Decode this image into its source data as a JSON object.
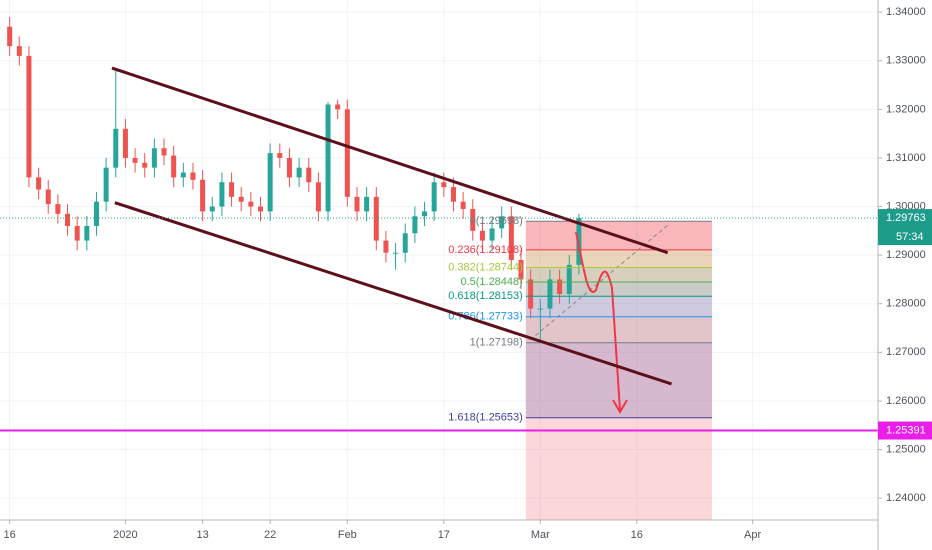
{
  "chart_data": {
    "type": "candlestick",
    "x": [
      0,
      1,
      2,
      3,
      4,
      5,
      6,
      7,
      8,
      9,
      10,
      11,
      12,
      13,
      14,
      15,
      16,
      17,
      18,
      19,
      20,
      21,
      22,
      23,
      24,
      25,
      26,
      27,
      28,
      29,
      30,
      31,
      32,
      33,
      34,
      35,
      36,
      37,
      38,
      39,
      40,
      41,
      42,
      43,
      44,
      45,
      46,
      47,
      48,
      49,
      50,
      51,
      52,
      53,
      54,
      55,
      56,
      57,
      58,
      59
    ],
    "open": [
      1.337,
      1.333,
      1.331,
      1.306,
      1.3035,
      1.3005,
      1.2985,
      1.296,
      1.293,
      1.296,
      1.301,
      1.308,
      1.316,
      1.31,
      1.309,
      1.308,
      1.312,
      1.3105,
      1.306,
      1.307,
      1.3055,
      1.299,
      1.3,
      1.305,
      1.302,
      1.301,
      1.3,
      1.299,
      1.311,
      1.31,
      1.306,
      1.308,
      1.305,
      1.299,
      1.321,
      1.32,
      1.302,
      1.299,
      1.302,
      1.293,
      1.2905,
      1.2905,
      1.2945,
      1.298,
      1.299,
      1.305,
      1.304,
      1.301,
      1.2995,
      1.295,
      1.293,
      1.2955,
      1.298,
      1.289,
      1.285,
      1.279,
      1.279,
      1.285,
      1.282,
      1.288
    ],
    "high": [
      1.339,
      1.335,
      1.333,
      1.308,
      1.3055,
      1.3025,
      1.3005,
      1.298,
      1.298,
      1.303,
      1.31,
      1.3285,
      1.318,
      1.312,
      1.311,
      1.314,
      1.314,
      1.3125,
      1.309,
      1.309,
      1.3075,
      1.302,
      1.307,
      1.307,
      1.304,
      1.303,
      1.302,
      1.313,
      1.313,
      1.312,
      1.31,
      1.31,
      1.307,
      1.3215,
      1.322,
      1.322,
      1.304,
      1.304,
      1.304,
      1.295,
      1.2925,
      1.2965,
      1.3,
      1.301,
      1.307,
      1.307,
      1.306,
      1.303,
      1.3015,
      1.297,
      1.2975,
      1.3,
      1.3,
      1.291,
      1.287,
      1.281,
      1.287,
      1.287,
      1.29,
      1.2985
    ],
    "low": [
      1.331,
      1.329,
      1.304,
      1.3015,
      1.2985,
      1.2965,
      1.294,
      1.291,
      1.291,
      1.294,
      1.299,
      1.306,
      1.308,
      1.307,
      1.306,
      1.306,
      1.3085,
      1.304,
      1.304,
      1.3035,
      1.297,
      1.297,
      1.298,
      1.3,
      1.299,
      1.298,
      1.297,
      1.297,
      1.308,
      1.304,
      1.304,
      1.303,
      1.297,
      1.297,
      1.318,
      1.3,
      1.297,
      1.297,
      1.291,
      1.2885,
      1.287,
      1.2885,
      1.2925,
      1.296,
      1.297,
      1.302,
      1.299,
      1.2975,
      1.293,
      1.291,
      1.291,
      1.2935,
      1.287,
      1.283,
      1.277,
      1.272,
      1.277,
      1.28,
      1.28,
      1.286
    ],
    "close": [
      1.333,
      1.331,
      1.306,
      1.3035,
      1.3005,
      1.2985,
      1.296,
      1.293,
      1.296,
      1.301,
      1.308,
      1.316,
      1.31,
      1.309,
      1.308,
      1.312,
      1.3105,
      1.306,
      1.307,
      1.3055,
      1.299,
      1.3,
      1.305,
      1.302,
      1.301,
      1.3,
      1.299,
      1.311,
      1.31,
      1.306,
      1.308,
      1.305,
      1.299,
      1.321,
      1.32,
      1.302,
      1.299,
      1.302,
      1.293,
      1.2905,
      1.2905,
      1.2945,
      1.298,
      1.299,
      1.305,
      1.304,
      1.301,
      1.2995,
      1.295,
      1.293,
      1.2955,
      1.298,
      1.289,
      1.285,
      1.279,
      1.279,
      1.285,
      1.282,
      1.288,
      1.2976
    ],
    "up_color": "#26a69a",
    "down_color": "#ef5350",
    "xlim": [
      -1,
      90
    ],
    "xticks": [
      {
        "value": 0,
        "label": "16"
      },
      {
        "value": 12,
        "label": "2020"
      },
      {
        "value": 20,
        "label": "13"
      },
      {
        "value": 27,
        "label": "22"
      },
      {
        "value": 35,
        "label": "Feb"
      },
      {
        "value": 45,
        "label": "17"
      },
      {
        "value": 55,
        "label": "Mar"
      },
      {
        "value": 65,
        "label": "16"
      },
      {
        "value": 77,
        "label": "Apr"
      }
    ],
    "ylim": [
      1.2355,
      1.3425
    ],
    "yticks": [
      {
        "value": 1.24,
        "label": "1.24000"
      },
      {
        "value": 1.25,
        "label": "1.25000"
      },
      {
        "value": 1.26,
        "label": "1.26000"
      },
      {
        "value": 1.27,
        "label": "1.27000"
      },
      {
        "value": 1.28,
        "label": "1.28000"
      },
      {
        "value": 1.29,
        "label": "1.29000"
      },
      {
        "value": 1.3,
        "label": "1.30000"
      },
      {
        "value": 1.31,
        "label": "1.31000"
      },
      {
        "value": 1.32,
        "label": "1.32000"
      },
      {
        "value": 1.33,
        "label": "1.33000"
      },
      {
        "value": 1.34,
        "label": "1.34000"
      }
    ],
    "grid": true,
    "current_price": {
      "value": 1.29763,
      "label": "1.29763",
      "countdown": "57:34",
      "color": "#1e9c8b"
    },
    "horizontal_line": {
      "value": 1.25391,
      "label": "1.25391",
      "color": "#e91ee9"
    },
    "trendlines": [
      {
        "x": [
          10.6,
          68.2
        ],
        "y": [
          1.3285,
          1.2905
        ]
      },
      {
        "x": [
          10.9,
          68.6
        ],
        "y": [
          1.3008,
          1.2635
        ]
      }
    ],
    "fib": {
      "x": [
        53.5,
        72.8
      ],
      "levels": [
        {
          "label": "0(1.29698)",
          "value": 1.29698,
          "color": "#787b86"
        },
        {
          "label": "0.236(1.29108)",
          "value": 1.29108,
          "color": "#f23645"
        },
        {
          "label": "0.382(1.28744)",
          "value": 1.28744,
          "color": "#a5c93a"
        },
        {
          "label": "0.5(1.28448)",
          "value": 1.28448,
          "color": "#4caf50"
        },
        {
          "label": "0.618(1.28153)",
          "value": 1.28153,
          "color": "#089981"
        },
        {
          "label": "0.786(1.27733)",
          "value": 1.27733,
          "color": "#2196f3"
        },
        {
          "label": "1(1.27198)",
          "value": 1.27198,
          "color": "#787b86"
        },
        {
          "label": "1.618(1.25653)",
          "value": 1.25653,
          "color": "#3f3fa0"
        }
      ]
    }
  }
}
